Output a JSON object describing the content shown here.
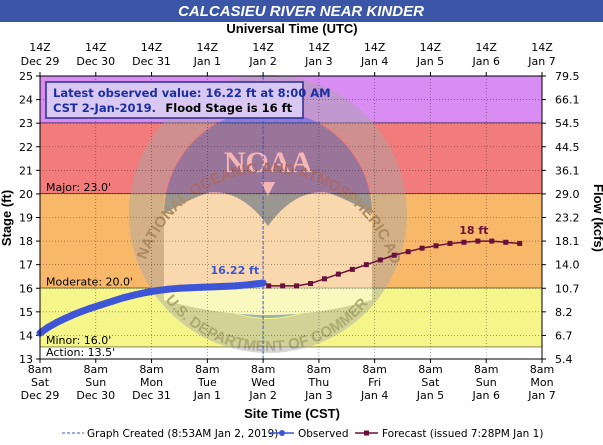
{
  "title": "CALCASIEU RIVER NEAR KINDER",
  "top_axis": {
    "title": "Universal Time (UTC)",
    "ticks": [
      [
        "14Z",
        "Dec 29"
      ],
      [
        "14Z",
        "Dec 30"
      ],
      [
        "14Z",
        "Dec 31"
      ],
      [
        "14Z",
        "Jan 1"
      ],
      [
        "14Z",
        "Jan 2"
      ],
      [
        "14Z",
        "Jan 3"
      ],
      [
        "14Z",
        "Jan 4"
      ],
      [
        "14Z",
        "Jan 5"
      ],
      [
        "14Z",
        "Jan 6"
      ],
      [
        "14Z",
        "Jan 7"
      ]
    ]
  },
  "bottom_axis": {
    "title": "Site Time (CST)",
    "ticks": [
      [
        "8am",
        "Sat",
        "Dec 29"
      ],
      [
        "8am",
        "Sun",
        "Dec 30"
      ],
      [
        "8am",
        "Mon",
        "Dec 31"
      ],
      [
        "8am",
        "Tue",
        "Jan 1"
      ],
      [
        "8am",
        "Wed",
        "Jan 2"
      ],
      [
        "8am",
        "Thu",
        "Jan 3"
      ],
      [
        "8am",
        "Fri",
        "Jan 4"
      ],
      [
        "8am",
        "Sat",
        "Jan 5"
      ],
      [
        "8am",
        "Sun",
        "Jan 6"
      ],
      [
        "8am",
        "Mon",
        "Jan 7"
      ]
    ]
  },
  "left_axis": {
    "title": "Stage (ft)",
    "ticks": [
      "13",
      "14",
      "15",
      "16",
      "17",
      "18",
      "19",
      "20",
      "21",
      "22",
      "23",
      "24",
      "25"
    ]
  },
  "right_axis": {
    "title": "Flow (kcfs)",
    "ticks": [
      {
        "stage": 13,
        "label": "5.4"
      },
      {
        "stage": 14,
        "label": "6.7"
      },
      {
        "stage": 15,
        "label": "8.2"
      },
      {
        "stage": 16,
        "label": "10.7"
      },
      {
        "stage": 17,
        "label": "14.0"
      },
      {
        "stage": 18,
        "label": "18.1"
      },
      {
        "stage": 19,
        "label": "23.2"
      },
      {
        "stage": 20,
        "label": "29.0"
      },
      {
        "stage": 21,
        "label": "36.1"
      },
      {
        "stage": 22,
        "label": "44.5"
      },
      {
        "stage": 23,
        "label": "54.5"
      },
      {
        "stage": 24,
        "label": "66.1"
      },
      {
        "stage": 25,
        "label": "79.5"
      }
    ]
  },
  "info_box": {
    "line1": "Latest observed value: 16.22  ft at 8:00 AM",
    "line2_blue": "CST 2-Jan-2019.",
    "line2_black": "Flood Stage is 16 ft"
  },
  "flood_bands": [
    {
      "label": "",
      "from": 23,
      "to": 25,
      "color": "#d98cf2"
    },
    {
      "label": "Major: 23.0'",
      "from": 20,
      "to": 23,
      "color": "#f27b7b"
    },
    {
      "label": "Moderate: 20.0'",
      "from": 16,
      "to": 20,
      "color": "#f7b86a"
    },
    {
      "label": "Minor: 16.0'",
      "from": 13.5,
      "to": 16,
      "color": "#f5f58a"
    },
    {
      "label": "Action: 13.5'",
      "from": 13,
      "to": 13.5,
      "color": "#ffffff"
    }
  ],
  "legend": {
    "graph_created": "Graph Created (8:53AM Jan 2, 2019)",
    "observed": "Observed",
    "forecast": "Forecast (issued 7:28PM Jan 1)"
  },
  "watermark": {
    "noaa": "NOAA",
    "ring_top": "NATIONAL OCEANIC AND ATMOSPHERIC ADMINISTRATION",
    "ring_bottom": "U.S. DEPARTMENT OF COMMERCE"
  },
  "colors": {
    "observed": "#3d55d6",
    "forecast": "#6b0f3c",
    "title_bar": "#3b56a6",
    "graph_created_line": "#3d55d6"
  },
  "chart_data": {
    "type": "line",
    "title": "CALCASIEU RIVER NEAR KINDER",
    "xlabel": "Site Time (CST)",
    "ylabel": "Stage (ft)",
    "y2label": "Flow (kcfs)",
    "x_unit": "days after 8am CST Sat Dec 29, 2018",
    "xlim": [
      0,
      9
    ],
    "ylim": [
      13,
      25
    ],
    "graph_created_x": 4.0,
    "series": [
      {
        "name": "Observed",
        "x": [
          0.0,
          0.15,
          0.3,
          0.45,
          0.6,
          0.75,
          0.9,
          1.1,
          1.3,
          1.5,
          1.7,
          1.9,
          2.1,
          2.3,
          2.5,
          2.7,
          2.9,
          3.1,
          3.3,
          3.5,
          3.7,
          3.85,
          4.0
        ],
        "y": [
          14.1,
          14.35,
          14.55,
          14.72,
          14.88,
          15.02,
          15.15,
          15.3,
          15.45,
          15.6,
          15.72,
          15.82,
          15.9,
          15.96,
          16.0,
          16.02,
          16.04,
          16.06,
          16.08,
          16.1,
          16.14,
          16.18,
          16.22
        ],
        "label": "16.22 ft"
      },
      {
        "name": "Forecast",
        "x": [
          4.1,
          4.35,
          4.6,
          4.85,
          5.1,
          5.35,
          5.6,
          5.85,
          6.1,
          6.35,
          6.6,
          6.85,
          7.1,
          7.35,
          7.6,
          7.85,
          8.1,
          8.35,
          8.6
        ],
        "y": [
          16.1,
          16.1,
          16.1,
          16.2,
          16.4,
          16.6,
          16.8,
          17.0,
          17.2,
          17.4,
          17.55,
          17.7,
          17.8,
          17.9,
          17.95,
          18.0,
          18.0,
          17.95,
          17.9
        ],
        "label": "18 ft"
      }
    ]
  }
}
